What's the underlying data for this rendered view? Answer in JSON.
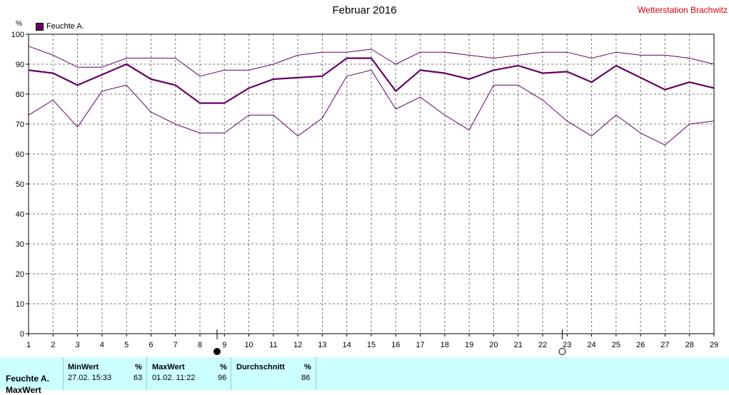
{
  "header": {
    "title": "Februar 2016",
    "station": "Wetterstation Brachwitz",
    "unit": "%"
  },
  "legend": {
    "label": "Feuchte A."
  },
  "colors": {
    "series": "#660066",
    "accent_red": "#e00000",
    "stats_bg": "#ccffff"
  },
  "chart_data": {
    "type": "line",
    "title": "Februar 2016",
    "ylabel": "%",
    "ylim": [
      0,
      100
    ],
    "yticks": [
      0,
      10,
      20,
      30,
      40,
      50,
      60,
      70,
      80,
      90,
      100
    ],
    "xlim": [
      1,
      29
    ],
    "x": [
      1,
      2,
      3,
      4,
      5,
      6,
      7,
      8,
      9,
      10,
      11,
      12,
      13,
      14,
      15,
      16,
      17,
      18,
      19,
      20,
      21,
      22,
      23,
      24,
      25,
      26,
      27,
      28,
      29
    ],
    "grid": true,
    "legend_position": "top-left",
    "moon_markers": [
      {
        "day": 8.7,
        "phase": "full"
      },
      {
        "day": 22.8,
        "phase": "new"
      }
    ],
    "series": [
      {
        "name": "Feuchte A.",
        "role": "max",
        "values": [
          96,
          93,
          89,
          89,
          92,
          92,
          92,
          86,
          88,
          88,
          90,
          93,
          94,
          94,
          95,
          90,
          94,
          94,
          93,
          92,
          93,
          94,
          94,
          92,
          94,
          93,
          93,
          92,
          90
        ]
      },
      {
        "name": "Feuchte A.",
        "role": "avg",
        "values": [
          88,
          87,
          83,
          86.5,
          90,
          85,
          83,
          77,
          77,
          82,
          85,
          85.5,
          86,
          92,
          92,
          81,
          88,
          87,
          85,
          88,
          89.5,
          87,
          87.5,
          84,
          89.5,
          85.5,
          81.5,
          84,
          82
        ]
      },
      {
        "name": "Feuchte A.",
        "role": "min",
        "values": [
          73,
          78,
          69,
          81,
          83,
          74,
          70,
          67,
          67,
          73,
          73,
          66,
          72,
          86,
          88,
          75,
          79,
          73,
          68,
          83,
          83,
          78,
          71,
          66,
          73,
          67,
          63,
          70,
          71
        ]
      }
    ]
  },
  "stats": {
    "row_label": "Feuchte A.",
    "row_label_2": "MaxWert",
    "min_header": "MinWert",
    "min_unit": "%",
    "min_time": "27.02.  15:33",
    "min_value": "63",
    "max_header": "MaxWert",
    "max_unit": "%",
    "max_time": "01.02.  11:22",
    "max_value": "96",
    "avg_header": "Durchschnitt",
    "avg_unit": "%",
    "avg_value": "86"
  }
}
